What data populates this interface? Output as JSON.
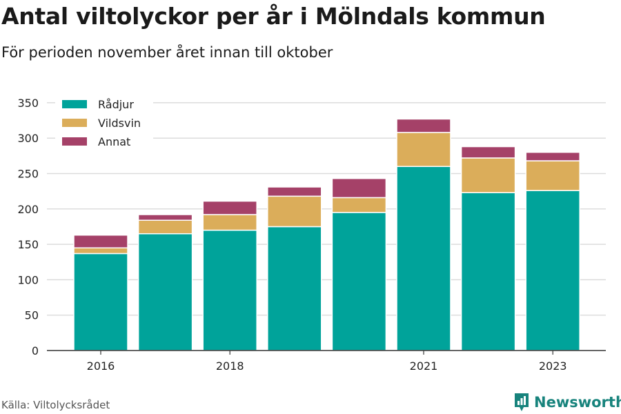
{
  "title": "Antal viltolyckor per år i Mölndals kommun",
  "subtitle": "För perioden november året innan till oktober",
  "source": "Källa: Viltolycksrådet",
  "brand": {
    "name": "Newsworthy",
    "icon": "newsworthy-logo-icon",
    "color": "#17837c"
  },
  "chart_data": {
    "type": "bar",
    "stacked": true,
    "categories": [
      "2016",
      "2017",
      "2018",
      "2019",
      "2020",
      "2021",
      "2022",
      "2023"
    ],
    "x_tick_labels": [
      "2016",
      "",
      "2018",
      "",
      "",
      "2021",
      "",
      "2023"
    ],
    "series": [
      {
        "name": "Rådjur",
        "color": "#00a39a",
        "values": [
          137,
          165,
          170,
          175,
          195,
          260,
          223,
          226
        ]
      },
      {
        "name": "Vildsvin",
        "color": "#dbad5a",
        "values": [
          8,
          19,
          22,
          43,
          21,
          48,
          49,
          42
        ]
      },
      {
        "name": "Annat",
        "color": "#a54168",
        "values": [
          18,
          8,
          19,
          13,
          27,
          19,
          16,
          12
        ]
      }
    ],
    "yticks": [
      0,
      50,
      100,
      150,
      200,
      250,
      300,
      350
    ],
    "ylim": [
      0,
      370
    ],
    "xlabel": "",
    "ylabel": "",
    "grid": true,
    "legend_position": "top-left"
  }
}
